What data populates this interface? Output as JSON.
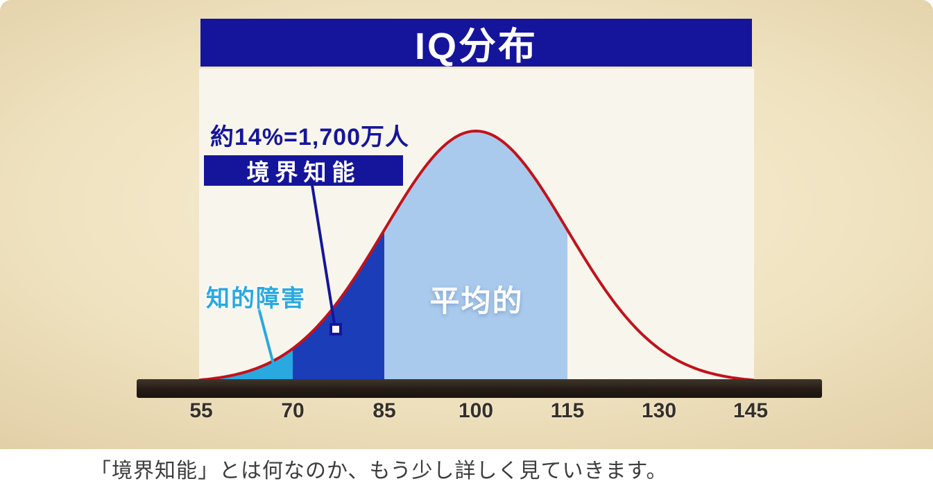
{
  "title_banner": {
    "text": "IQ分布"
  },
  "annotations": {
    "stat": "約14%=1,700万人",
    "borderline_label": "境界知能",
    "intellectual_label": "知的障害",
    "average_label": "平均的"
  },
  "caption": {
    "text": "「境界知能」とは何なのか、もう少し詳しく見ていきます。"
  },
  "colors": {
    "banner_bg": "#15159b",
    "banner_text": "#ffffff",
    "panel_bg": "#f8f5ec",
    "stage_bg_center": "#f8efd8",
    "stage_bg_edge": "#d4bd90",
    "axis_bar": "#241c15",
    "curve": "#c1121c",
    "stat_text": "#15159b",
    "intellectual_text": "#29a9e0",
    "tick_text": "#35302a",
    "caption_text": "#3d3d3d"
  },
  "chart_data": {
    "type": "area",
    "title": "IQ分布",
    "distribution": {
      "mean": 100,
      "std": 15
    },
    "x_ticks": [
      55,
      70,
      85,
      100,
      115,
      130,
      145
    ],
    "x_range": [
      54.5,
      145.6
    ],
    "regions": [
      {
        "key": "intellectual",
        "name": "知的障害",
        "from": 54.5,
        "to": 70,
        "color": "#29a9e0"
      },
      {
        "key": "borderline",
        "name": "境界知能",
        "from": 70,
        "to": 85,
        "color": "#1c3db8"
      },
      {
        "key": "average",
        "name": "平均的",
        "from": 85,
        "to": 115,
        "color": "#a9caec"
      }
    ],
    "annotation": "約14%=1,700万人",
    "grid": false,
    "legend": false
  }
}
